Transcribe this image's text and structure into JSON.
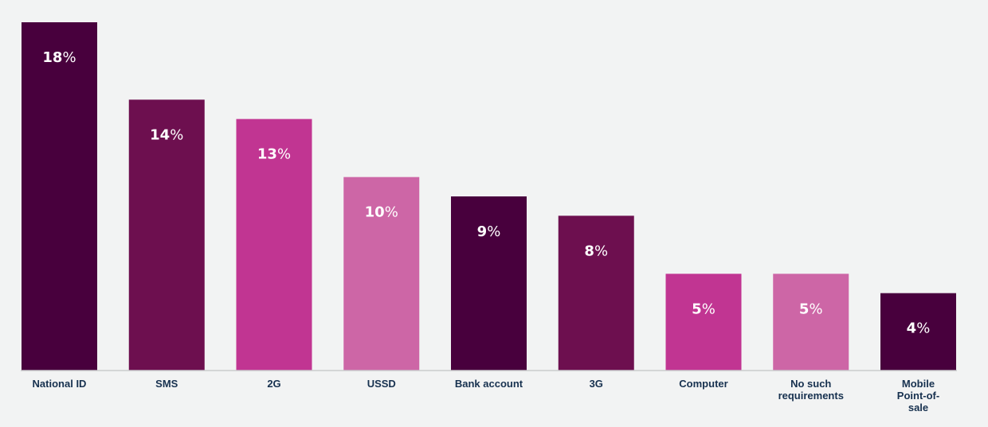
{
  "chart_data": {
    "type": "bar",
    "categories": [
      [
        "National ID"
      ],
      [
        "SMS"
      ],
      [
        "2G"
      ],
      [
        "USSD"
      ],
      [
        "Bank account"
      ],
      [
        "3G"
      ],
      [
        "Computer"
      ],
      [
        "No such",
        "requirements"
      ],
      [
        "Mobile",
        "Point-of-",
        "sale"
      ]
    ],
    "values": [
      18,
      14,
      13,
      10,
      9,
      8,
      5,
      5,
      4
    ],
    "value_suffix": "%",
    "bar_colors": [
      "#48003d",
      "#6d0f4f",
      "#c13592",
      "#cd66a6",
      "#48003d",
      "#6d0f4f",
      "#c13592",
      "#cd66a6",
      "#48003d"
    ],
    "ylim": [
      0,
      18
    ],
    "title": "",
    "xlabel": "",
    "ylabel": "",
    "grid": false,
    "legend": "none",
    "baseline_color": "#c9cccd",
    "label_color": "#17314f"
  }
}
